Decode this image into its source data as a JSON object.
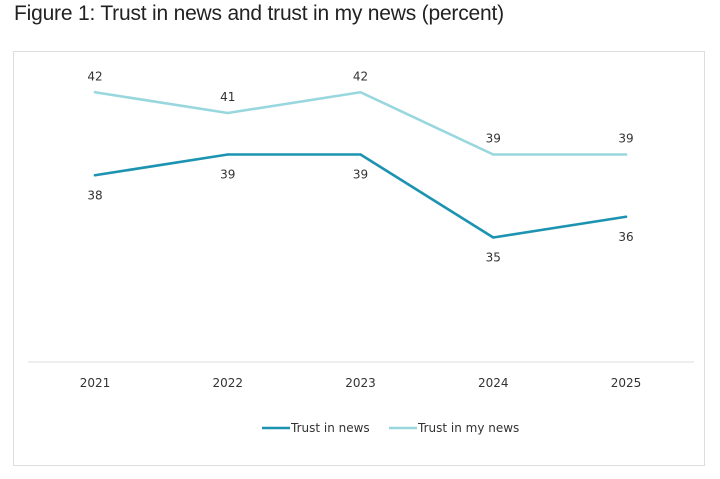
{
  "title": "Figure 1: Trust in news and trust in my news (percent)",
  "chart_data": {
    "type": "line",
    "x": [
      "2021",
      "2022",
      "2023",
      "2024",
      "2025"
    ],
    "series": [
      {
        "name": "Trust in news",
        "values": [
          38,
          39,
          39,
          35,
          36
        ],
        "value_labels": [
          "38",
          "39",
          "39",
          "35",
          "36"
        ],
        "color": "#1c93b0",
        "label_position": "below"
      },
      {
        "name": "Trust in my news",
        "values": [
          42,
          41,
          42,
          39,
          39
        ],
        "value_labels": [
          "42",
          "41",
          "42",
          "39",
          "39"
        ],
        "color": "#99d7de",
        "label_position": "above"
      }
    ],
    "ylim": [
      29,
      45
    ],
    "grid": false,
    "legend": "bottom"
  }
}
